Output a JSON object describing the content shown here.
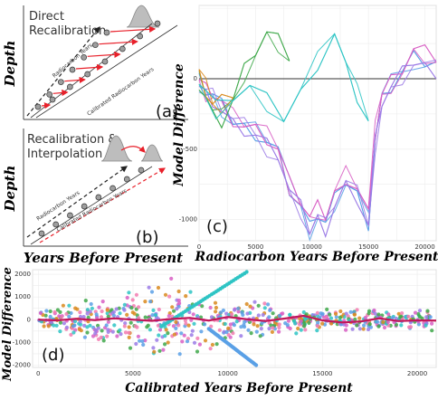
{
  "colors": {
    "magenta": "#d85fc4",
    "blue": "#5aa0e6",
    "cyan": "#2ec4c4",
    "green": "#3fa84a",
    "orange": "#d98a1e",
    "pink": "#f27bb0",
    "purple": "#9b7be6",
    "trend": "#c2185b",
    "gray": "#bdbdbd",
    "red": "#e8202a"
  },
  "panel_a": {
    "title_line1": "Direct",
    "title_line2": "Recalibration",
    "y_title": "Depth",
    "label_top": "Radiocarbon Years",
    "label_bottom": "Calibrated Radiocarbon Years",
    "letter": "(a)"
  },
  "panel_b": {
    "title_line1": "Recalibration &",
    "title_line2": "Interpolation",
    "y_title": "Depth",
    "label_top": "Radiocarbon Years",
    "label_bottom": "Calibrated Radiocarbon Years",
    "letter": "(b)"
  },
  "shared_x_title": "Years Before Present",
  "chart_data": [
    {
      "id": "c",
      "type": "line",
      "letter": "(c)",
      "xlabel": "Radiocarbon Years Before Present",
      "ylabel": "Model Difference",
      "xlim": [
        0,
        21000
      ],
      "ylim": [
        -1150,
        520
      ],
      "xticks": [
        "0",
        "5000",
        "10000",
        "15000",
        "20000"
      ],
      "yticks": [
        "0",
        "-500",
        "-1000"
      ],
      "grid": true,
      "series": [
        {
          "color_key": "blue",
          "x": [
            0,
            600,
            1200,
            2000,
            3000,
            4000,
            5000,
            6000,
            7000,
            8000,
            9000,
            9800,
            10500,
            11200,
            12000,
            13000,
            14000,
            15000,
            15600,
            16200,
            17000,
            18000,
            19000,
            20000,
            21000
          ],
          "y": [
            -10,
            -80,
            -120,
            -200,
            -300,
            -340,
            -380,
            -440,
            -520,
            -780,
            -900,
            -1060,
            -960,
            -1030,
            -870,
            -730,
            -820,
            -1020,
            -420,
            -140,
            -50,
            50,
            150,
            120,
            110
          ]
        },
        {
          "color_key": "magenta",
          "x": [
            0,
            600,
            1200,
            2000,
            3000,
            4000,
            5000,
            6000,
            7000,
            8000,
            9000,
            9800,
            10500,
            11200,
            12000,
            13000,
            14000,
            15000,
            15600,
            16200,
            17000,
            18000,
            19000,
            20000,
            21000
          ],
          "y": [
            -20,
            -90,
            -110,
            -180,
            -280,
            -330,
            -360,
            -420,
            -500,
            -740,
            -860,
            -990,
            -920,
            -980,
            -820,
            -690,
            -770,
            -960,
            -380,
            -110,
            -20,
            70,
            200,
            180,
            140
          ]
        },
        {
          "color_key": "purple",
          "x": [
            0,
            600,
            1200,
            2000,
            3000,
            4000,
            5000,
            6000,
            7000,
            8000,
            9000,
            9800,
            10500,
            11200,
            12000,
            13000,
            14000,
            15000,
            15600,
            16200,
            17000,
            18000,
            19000,
            20000,
            21000
          ],
          "y": [
            -30,
            -100,
            -140,
            -220,
            -320,
            -360,
            -400,
            -470,
            -540,
            -800,
            -920,
            -1080,
            -990,
            -1060,
            -900,
            -760,
            -840,
            -1040,
            -450,
            -160,
            -70,
            30,
            120,
            90,
            60
          ]
        },
        {
          "color_key": "green",
          "x": [
            0,
            600,
            1200,
            2000,
            3000,
            4000,
            5000,
            6000,
            7000,
            8000
          ],
          "y": [
            -20,
            -120,
            -260,
            -300,
            -150,
            60,
            200,
            320,
            260,
            150
          ]
        },
        {
          "color_key": "orange",
          "x": [
            0,
            600,
            1200,
            2000,
            3000
          ],
          "y": [
            30,
            -80,
            -180,
            -160,
            -100
          ]
        },
        {
          "color_key": "cyan",
          "x": [
            0,
            1500,
            3000,
            4500,
            6000,
            7500,
            9000,
            10500,
            12000,
            13000,
            14000,
            15000
          ],
          "y": [
            -40,
            -200,
            -120,
            -60,
            -160,
            -280,
            -100,
            120,
            330,
            80,
            -120,
            -300
          ]
        }
      ]
    },
    {
      "id": "d",
      "type": "scatter",
      "letter": "(d)",
      "xlabel": "Calibrated Years Before Present",
      "ylabel": "Model Difference",
      "xlim": [
        -300,
        21000
      ],
      "ylim": [
        -2100,
        2200
      ],
      "xticks": [
        "0",
        "5000",
        "10000",
        "15000",
        "20000"
      ],
      "yticks": [
        "2000",
        "1000",
        "0",
        "-1000",
        "-2000"
      ],
      "grid": true,
      "series": [
        {
          "name_key": "trend",
          "color_key": "trend",
          "x": [
            0,
            1000,
            2000,
            3000,
            4000,
            5000,
            6000,
            7000,
            8000,
            9000,
            10000,
            11000,
            12000,
            13000,
            14000,
            15000,
            16000,
            17000,
            18000,
            19000,
            20000,
            21000
          ],
          "y": [
            0,
            -30,
            40,
            -20,
            60,
            0,
            -50,
            30,
            80,
            -40,
            120,
            20,
            -60,
            50,
            170,
            -30,
            -120,
            -80,
            60,
            -60,
            -30,
            -40
          ]
        }
      ]
    }
  ]
}
